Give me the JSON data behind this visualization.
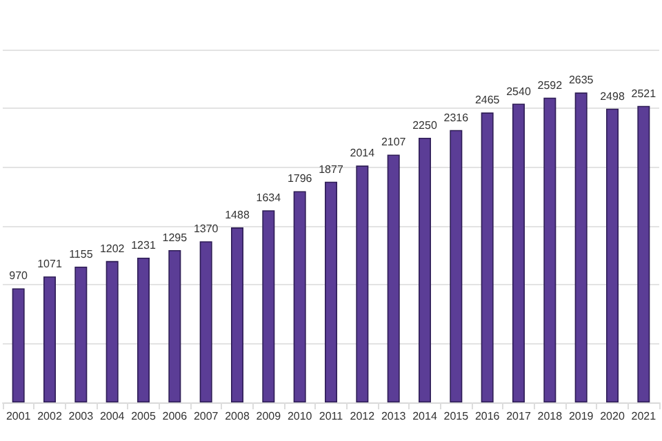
{
  "chart_data": {
    "type": "bar",
    "categories": [
      "2001",
      "2002",
      "2003",
      "2004",
      "2005",
      "2006",
      "2007",
      "2008",
      "2009",
      "2010",
      "2011",
      "2012",
      "2013",
      "2014",
      "2015",
      "2016",
      "2017",
      "2018",
      "2019",
      "2020",
      "2021"
    ],
    "values": [
      970,
      1071,
      1155,
      1202,
      1231,
      1295,
      1370,
      1488,
      1634,
      1796,
      1877,
      2014,
      2107,
      2250,
      2316,
      2465,
      2540,
      2592,
      2635,
      2498,
      2521
    ],
    "color": "#5b3d96",
    "ylim": [
      0,
      3000
    ],
    "grid": "y",
    "tick_labels": "x",
    "data_labels": true
  }
}
